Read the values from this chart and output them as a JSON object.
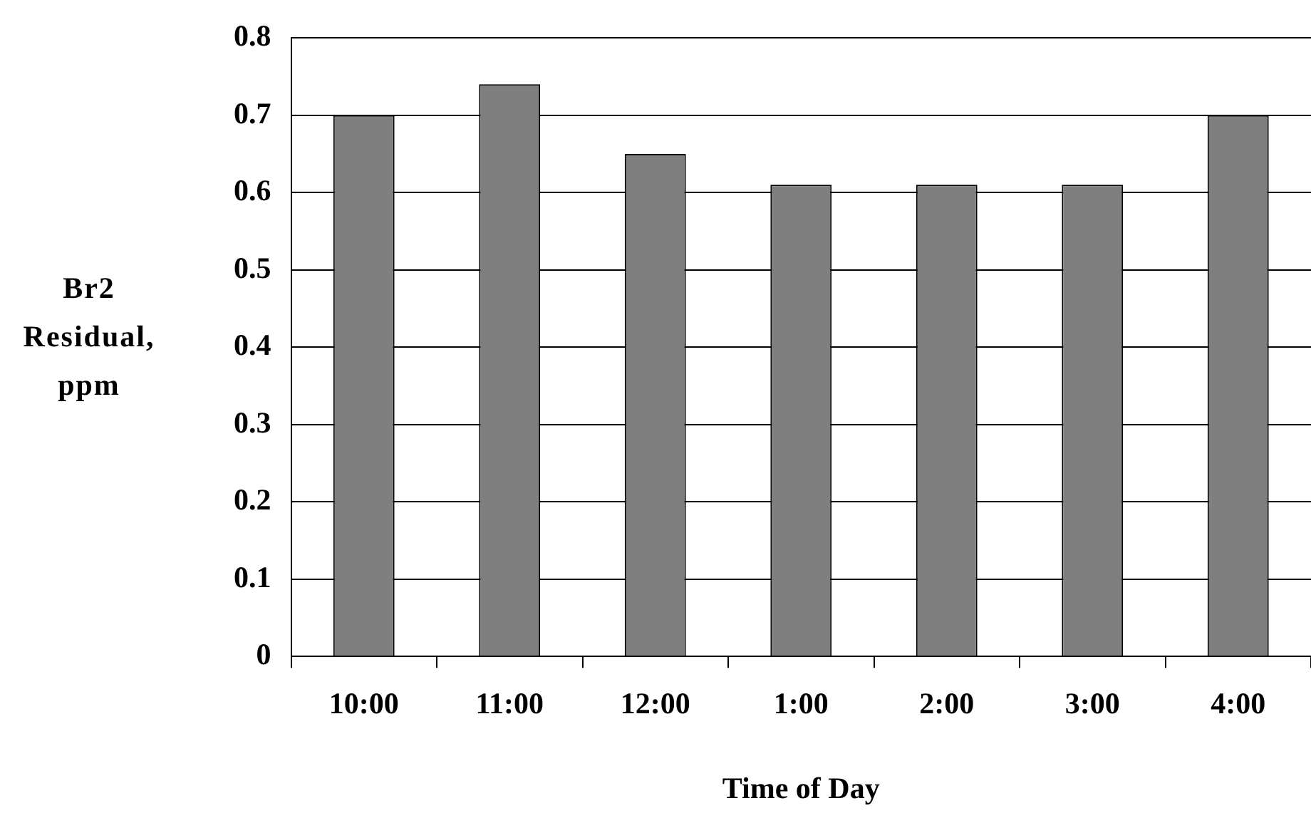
{
  "chart_data": {
    "type": "bar",
    "xlabel": "Time of Day",
    "ylabel": "Br2 Residual, ppm",
    "categories": [
      "10:00",
      "11:00",
      "12:00",
      "1:00",
      "2:00",
      "3:00",
      "4:00"
    ],
    "values": [
      0.7,
      0.74,
      0.65,
      0.61,
      0.61,
      0.61,
      0.7
    ],
    "color": "#7f7f7f",
    "ylim": [
      0,
      0.8
    ],
    "yticks": [
      0,
      0.1,
      0.2,
      0.3,
      0.4,
      0.5,
      0.6,
      0.7,
      0.8
    ],
    "grid": "y",
    "legend": false
  }
}
